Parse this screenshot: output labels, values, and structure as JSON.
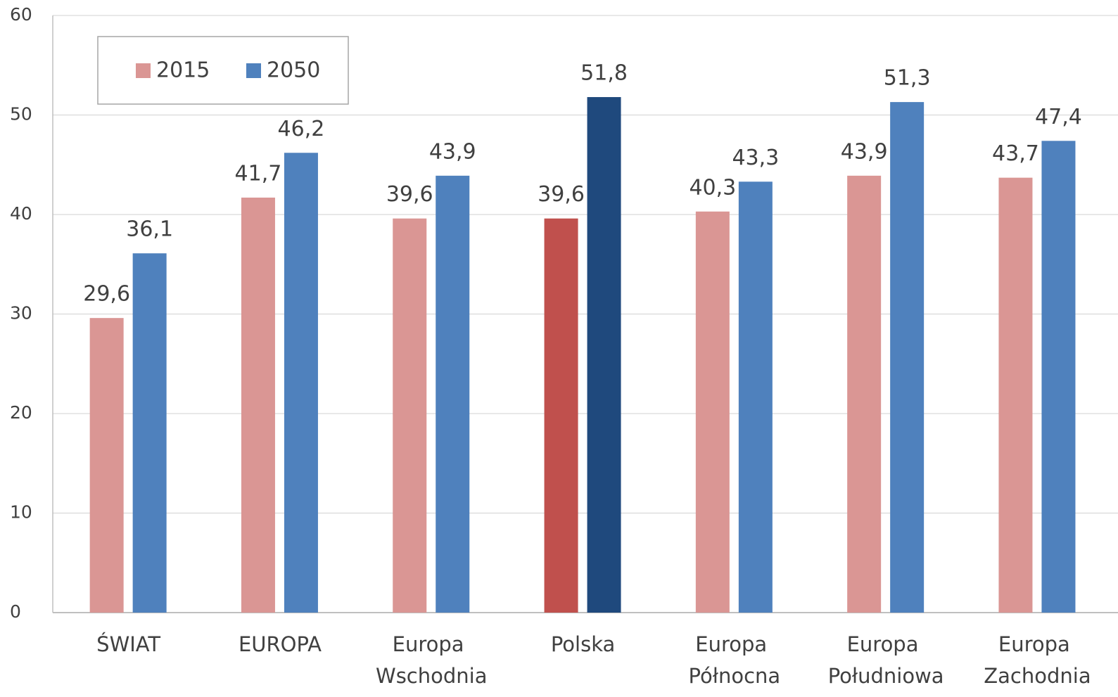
{
  "chart_data": {
    "type": "bar",
    "categories": [
      "ŚWIAT",
      "EUROPA",
      "Europa Wschodnia",
      "Polska",
      "Europa Północna",
      "Europa Południowa",
      "Europa Zachodnia"
    ],
    "series": [
      {
        "name": "2015",
        "color": "#da9694",
        "colors": [
          "#da9694",
          "#da9694",
          "#da9694",
          "#c0504d",
          "#da9694",
          "#da9694",
          "#da9694"
        ],
        "values": [
          29.6,
          41.7,
          39.6,
          39.6,
          40.3,
          43.9,
          43.7
        ],
        "value_labels": [
          "29,6",
          "41,7",
          "39,6",
          "39,6",
          "40,3",
          "43,9",
          "43,7"
        ]
      },
      {
        "name": "2050",
        "color": "#4f81bd",
        "colors": [
          "#4f81bd",
          "#4f81bd",
          "#4f81bd",
          "#1f497d",
          "#4f81bd",
          "#4f81bd",
          "#4f81bd"
        ],
        "values": [
          36.1,
          46.2,
          43.9,
          51.8,
          43.3,
          51.3,
          47.4
        ],
        "value_labels": [
          "36,1",
          "46,2",
          "43,9",
          "51,8",
          "43,3",
          "51,3",
          "47,4"
        ]
      }
    ],
    "ylim": [
      0,
      60
    ],
    "yticks": [
      0,
      10,
      20,
      30,
      40,
      50,
      60
    ],
    "grid": true,
    "legend": "top-left"
  }
}
